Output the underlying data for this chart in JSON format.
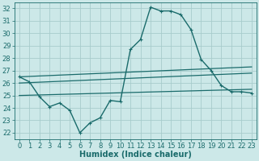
{
  "xlabel": "Humidex (Indice chaleur)",
  "ylabel": "",
  "bg_color": "#cce8e8",
  "grid_color": "#a8cccc",
  "line_color": "#1a6b6b",
  "xlim": [
    -0.5,
    23.5
  ],
  "ylim": [
    21.5,
    32.5
  ],
  "yticks": [
    22,
    23,
    24,
    25,
    26,
    27,
    28,
    29,
    30,
    31,
    32
  ],
  "xticks": [
    0,
    1,
    2,
    3,
    4,
    5,
    6,
    7,
    8,
    9,
    10,
    11,
    12,
    13,
    14,
    15,
    16,
    17,
    18,
    19,
    20,
    21,
    22,
    23
  ],
  "humidex_x": [
    0,
    1,
    2,
    3,
    4,
    5,
    6,
    7,
    8,
    9,
    10,
    11,
    12,
    13,
    14,
    15,
    16,
    17,
    18,
    19,
    20,
    21,
    22,
    23
  ],
  "humidex_y": [
    26.5,
    26.1,
    24.9,
    24.1,
    24.4,
    23.8,
    22.0,
    22.8,
    23.2,
    24.6,
    24.5,
    28.7,
    29.5,
    32.1,
    31.8,
    31.8,
    31.5,
    30.3,
    27.9,
    27.0,
    25.8,
    25.3,
    25.3,
    25.2
  ],
  "trend1_x": [
    0,
    23
  ],
  "trend1_y": [
    26.5,
    27.3
  ],
  "trend2_x": [
    0,
    23
  ],
  "trend2_y": [
    26.0,
    26.8
  ],
  "trend3_x": [
    0,
    23
  ],
  "trend3_y": [
    25.0,
    25.5
  ],
  "font_size_label": 7,
  "font_size_tick": 6,
  "tick_label_color": "#1a6b6b"
}
